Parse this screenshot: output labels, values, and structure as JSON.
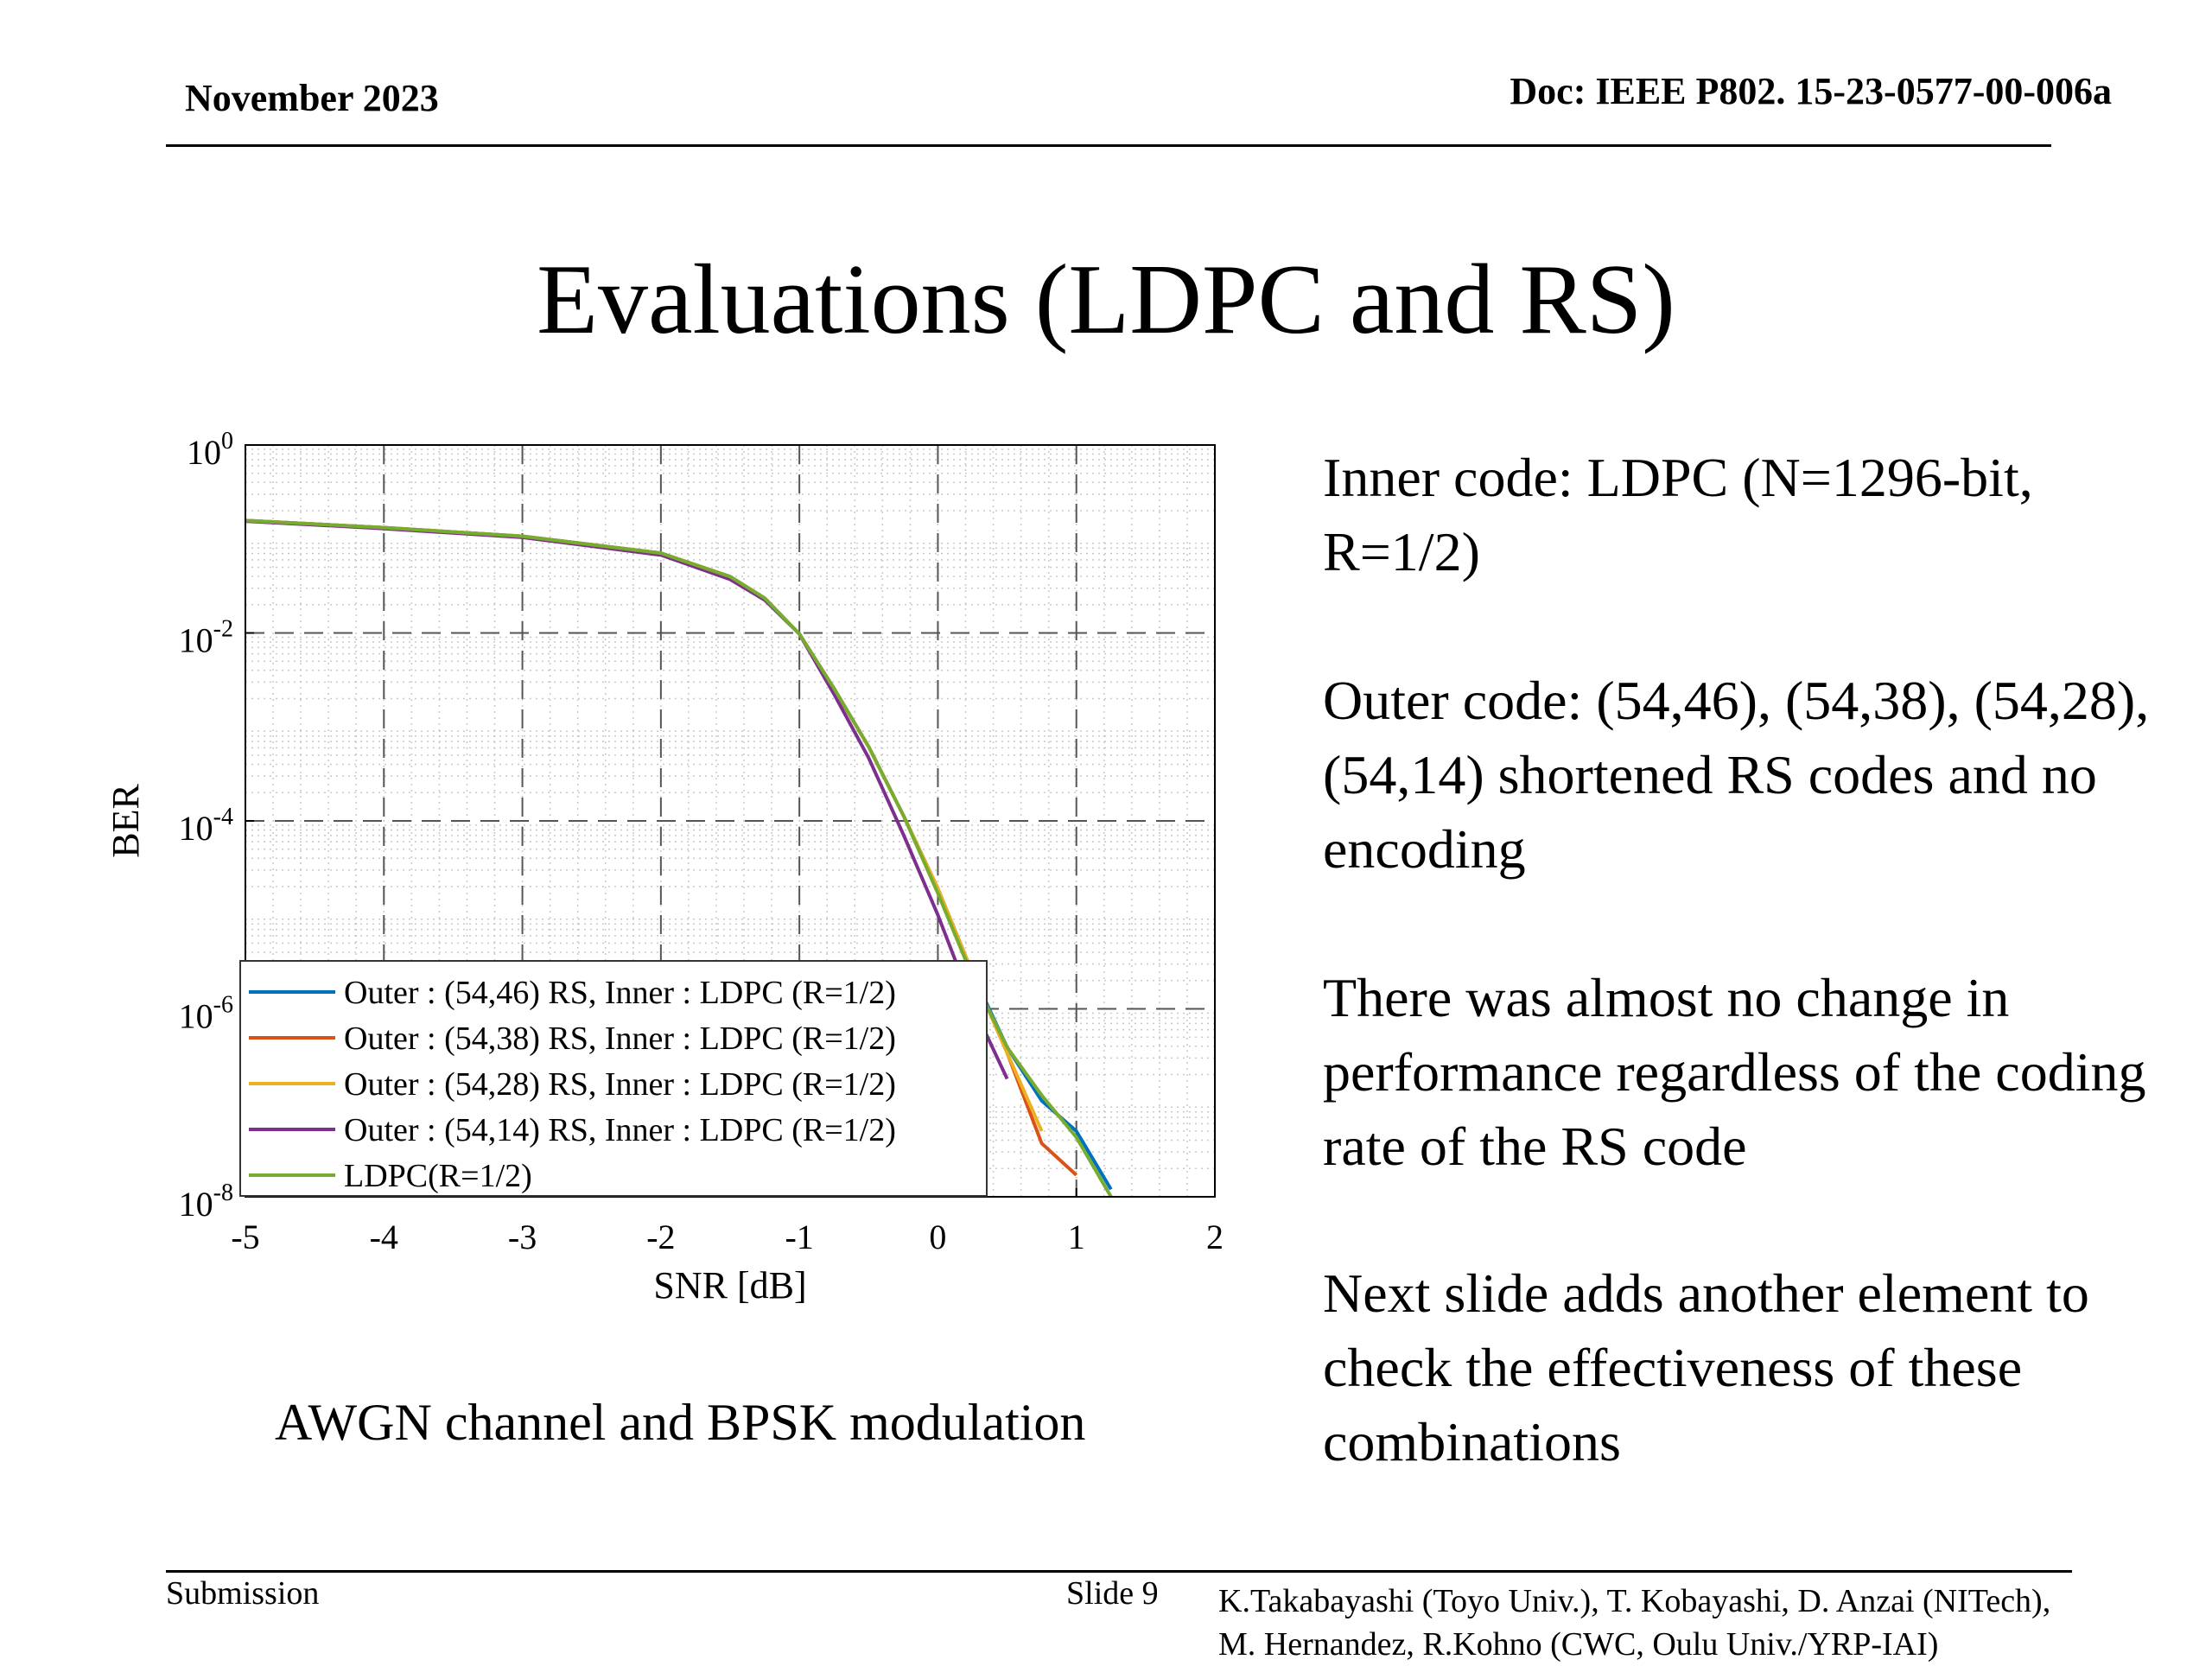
{
  "header": {
    "date": "November 2023",
    "doc": "Doc: IEEE P802. 15-23-0577-00-006a"
  },
  "title": "Evaluations (LDPC and RS)",
  "caption": "AWGN channel and BPSK modulation",
  "bullets": [
    "Inner code: LDPC (N=1296-bit, R=1/2)",
    "Outer code: (54,46), (54,38), (54,28), (54,14) shortened RS codes and no encoding",
    "There was almost no change in performance regardless of the coding rate of the RS code",
    "Next slide adds another element to check the effectiveness of these combinations"
  ],
  "footer": {
    "left": "Submission",
    "slide": "Slide 9",
    "authors_line1": "K.Takabayashi (Toyo Univ.), T. Kobayashi, D. Anzai (NITech),",
    "authors_line2": "M. Hernandez,  R.Kohno (CWC, Oulu Univ./YRP-IAI)"
  },
  "chart_data": {
    "type": "line",
    "xlabel": "SNR [dB]",
    "ylabel": "BER",
    "xlim": [
      -5,
      2
    ],
    "ylim": [
      1e-08,
      1
    ],
    "yscale": "log",
    "xticks": [
      "-5",
      "-4",
      "-3",
      "-2",
      "-1",
      "0",
      "1",
      "2"
    ],
    "yticks": [
      {
        "base": "10",
        "exp": "0"
      },
      {
        "base": "10",
        "exp": "-2"
      },
      {
        "base": "10",
        "exp": "-4"
      },
      {
        "base": "10",
        "exp": "-6"
      },
      {
        "base": "10",
        "exp": "-8"
      }
    ],
    "grid": true,
    "legend_position": "bottom-left",
    "series": [
      {
        "name": "Outer : (54,46) RS, Inner : LDPC (R=1/2)",
        "color": "#0072BD",
        "x": [
          -5,
          -4,
          -3,
          -2,
          -1.5,
          -1.25,
          -1,
          -0.75,
          -0.5,
          -0.25,
          0,
          0.25,
          0.5,
          0.75,
          1,
          1.25
        ],
        "y": [
          0.157,
          0.132,
          0.107,
          0.0708,
          0.0398,
          0.0234,
          0.00977,
          0.00257,
          0.000617,
          0.000115,
          1.9e-05,
          2.4e-06,
          3.9e-07,
          1.05e-07,
          5e-08,
          1.2e-08
        ]
      },
      {
        "name": "Outer : (54,38) RS, Inner : LDPC (R=1/2)",
        "color": "#D95319",
        "x": [
          -5,
          -4,
          -3,
          -2,
          -1.5,
          -1.25,
          -1,
          -0.75,
          -0.5,
          -0.25,
          0,
          0.25,
          0.5,
          0.75,
          1
        ],
        "y": [
          0.157,
          0.132,
          0.107,
          0.0708,
          0.0398,
          0.0234,
          0.00977,
          0.00257,
          0.000617,
          0.000115,
          1.9e-05,
          2.4e-06,
          3.4e-07,
          3.7e-08,
          1.7e-08
        ]
      },
      {
        "name": "Outer : (54,28) RS, Inner : LDPC (R=1/2)",
        "color": "#EDB120",
        "x": [
          -5,
          -4,
          -3,
          -2,
          -1.5,
          -1.25,
          -1,
          -0.75,
          -0.5,
          -0.25,
          0,
          0.25,
          0.5,
          0.75
        ],
        "y": [
          0.157,
          0.132,
          0.107,
          0.0708,
          0.0398,
          0.0234,
          0.00977,
          0.00257,
          0.000617,
          0.000115,
          1.9e-05,
          2.4e-06,
          3.4e-07,
          5e-08
        ]
      },
      {
        "name": "Outer : (54,14) RS, Inner : LDPC (R=1/2)",
        "color": "#7E2F8E",
        "x": [
          -5,
          -4,
          -3,
          -2,
          -1.5,
          -1.25,
          -1,
          -0.75,
          -0.5,
          -0.25,
          0,
          0.25,
          0.5
        ],
        "y": [
          0.155,
          0.129,
          0.104,
          0.0675,
          0.0372,
          0.0224,
          0.00977,
          0.00224,
          0.000468,
          7.2e-05,
          1e-05,
          1.1e-06,
          1.8e-07
        ]
      },
      {
        "name": "LDPC(R=1/2)",
        "color": "#77AC30",
        "x": [
          -5,
          -4,
          -3,
          -2,
          -1.5,
          -1.25,
          -1,
          -0.75,
          -0.5,
          -0.25,
          0,
          0.25,
          0.5,
          0.75,
          1,
          1.25
        ],
        "y": [
          0.157,
          0.132,
          0.107,
          0.0708,
          0.0398,
          0.0234,
          0.00977,
          0.00257,
          0.000617,
          0.000115,
          1.7e-05,
          2.2e-06,
          3.9e-07,
          1.2e-07,
          4.3e-08,
          1e-08
        ]
      }
    ]
  }
}
